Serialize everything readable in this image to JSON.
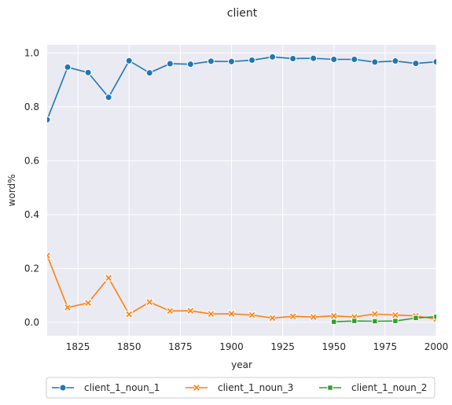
{
  "chart_data": {
    "type": "line",
    "title": "client",
    "xlabel": "year",
    "ylabel": "word%",
    "xlim": [
      1810,
      2000
    ],
    "ylim": [
      -0.05,
      1.03
    ],
    "xticks": [
      1825,
      1850,
      1875,
      1900,
      1925,
      1950,
      1975,
      2000
    ],
    "xtick_labels": [
      "1825",
      "1850",
      "1875",
      "1900",
      "1925",
      "1950",
      "1975",
      "2000"
    ],
    "yticks": [
      0.0,
      0.2,
      0.4,
      0.6,
      0.8,
      1.0
    ],
    "ytick_labels": [
      "0.0",
      "0.2",
      "0.4",
      "0.6",
      "0.8",
      "1.0"
    ],
    "grid": true,
    "legend_position": "bottom-center",
    "series": [
      {
        "name": "client_1_noun_1",
        "color": "#1f77b4",
        "marker": "circle",
        "x": [
          1810,
          1820,
          1830,
          1840,
          1850,
          1860,
          1870,
          1880,
          1890,
          1900,
          1910,
          1920,
          1930,
          1940,
          1950,
          1960,
          1970,
          1980,
          1990,
          2000
        ],
        "y": [
          0.752,
          0.947,
          0.927,
          0.835,
          0.971,
          0.926,
          0.96,
          0.958,
          0.969,
          0.968,
          0.973,
          0.985,
          0.979,
          0.98,
          0.976,
          0.976,
          0.966,
          0.97,
          0.961,
          0.967
        ]
      },
      {
        "name": "client_1_noun_3",
        "color": "#ff7f0e",
        "marker": "x",
        "x": [
          1810,
          1820,
          1830,
          1840,
          1850,
          1860,
          1870,
          1880,
          1890,
          1900,
          1910,
          1920,
          1930,
          1940,
          1950,
          1960,
          1970,
          1980,
          1990,
          2000
        ],
        "y": [
          0.248,
          0.055,
          0.072,
          0.165,
          0.03,
          0.075,
          0.042,
          0.043,
          0.031,
          0.032,
          0.027,
          0.016,
          0.022,
          0.02,
          0.024,
          0.02,
          0.031,
          0.027,
          0.024,
          0.012
        ]
      },
      {
        "name": "client_1_noun_2",
        "color": "#2ca02c",
        "marker": "square",
        "x": [
          1950,
          1960,
          1970,
          1980,
          1990,
          2000
        ],
        "y": [
          0.002,
          0.005,
          0.004,
          0.005,
          0.016,
          0.021
        ]
      }
    ]
  }
}
